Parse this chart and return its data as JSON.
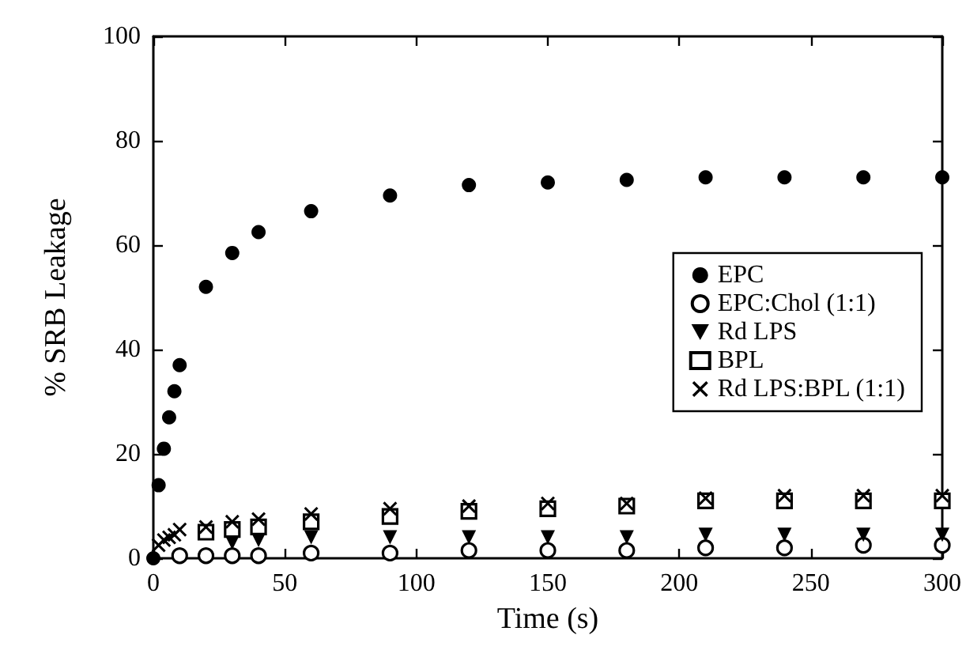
{
  "chart_data": {
    "type": "scatter",
    "xlabel": "Time (s)",
    "ylabel": "% SRB Leakage",
    "xlim": [
      0,
      300
    ],
    "xticks": [
      0,
      50,
      100,
      150,
      200,
      250,
      300
    ],
    "ylim": [
      0,
      100
    ],
    "yticks": [
      0,
      20,
      40,
      60,
      80,
      100
    ],
    "grid": false,
    "legend": "right",
    "x": [
      0,
      2,
      4,
      6,
      8,
      10,
      20,
      30,
      40,
      60,
      90,
      120,
      150,
      180,
      210,
      240,
      270,
      300
    ],
    "series": [
      {
        "name": "EPC",
        "color": "#000000",
        "marker": "circle",
        "values": [
          0,
          14,
          21,
          27,
          32,
          37,
          52,
          58.5,
          62.5,
          66.5,
          69.5,
          71.5,
          72,
          72.5,
          73,
          73,
          73,
          73
        ]
      },
      {
        "name": "EPC:Chol (1:1)",
        "color": "#000000",
        "marker": "circle-open",
        "values": [
          null,
          null,
          null,
          null,
          null,
          0.5,
          0.5,
          0.5,
          0.5,
          1,
          1,
          1.5,
          1.5,
          1.5,
          2,
          2,
          2.5,
          2.5
        ]
      },
      {
        "name": "Rd LPS",
        "color": "#000000",
        "marker": "triangle",
        "values": [
          null,
          null,
          null,
          null,
          null,
          null,
          null,
          3,
          3.5,
          4,
          4,
          4,
          4,
          4,
          4.5,
          4.5,
          4.5,
          4.5
        ]
      },
      {
        "name": "BPL",
        "color": "#000000",
        "marker": "square-open",
        "values": [
          null,
          null,
          null,
          null,
          null,
          null,
          5,
          5.5,
          6,
          7,
          8,
          9,
          9.5,
          10,
          11,
          11,
          11,
          11
        ]
      },
      {
        "name": "Rd LPS:BPL (1:1)",
        "color": "#000000",
        "marker": "cross",
        "values": [
          null,
          2.5,
          3.5,
          4,
          4.5,
          5.5,
          6,
          7,
          7.5,
          8.5,
          9.5,
          10,
          10.5,
          10.5,
          11.5,
          12,
          12,
          12
        ]
      }
    ]
  }
}
